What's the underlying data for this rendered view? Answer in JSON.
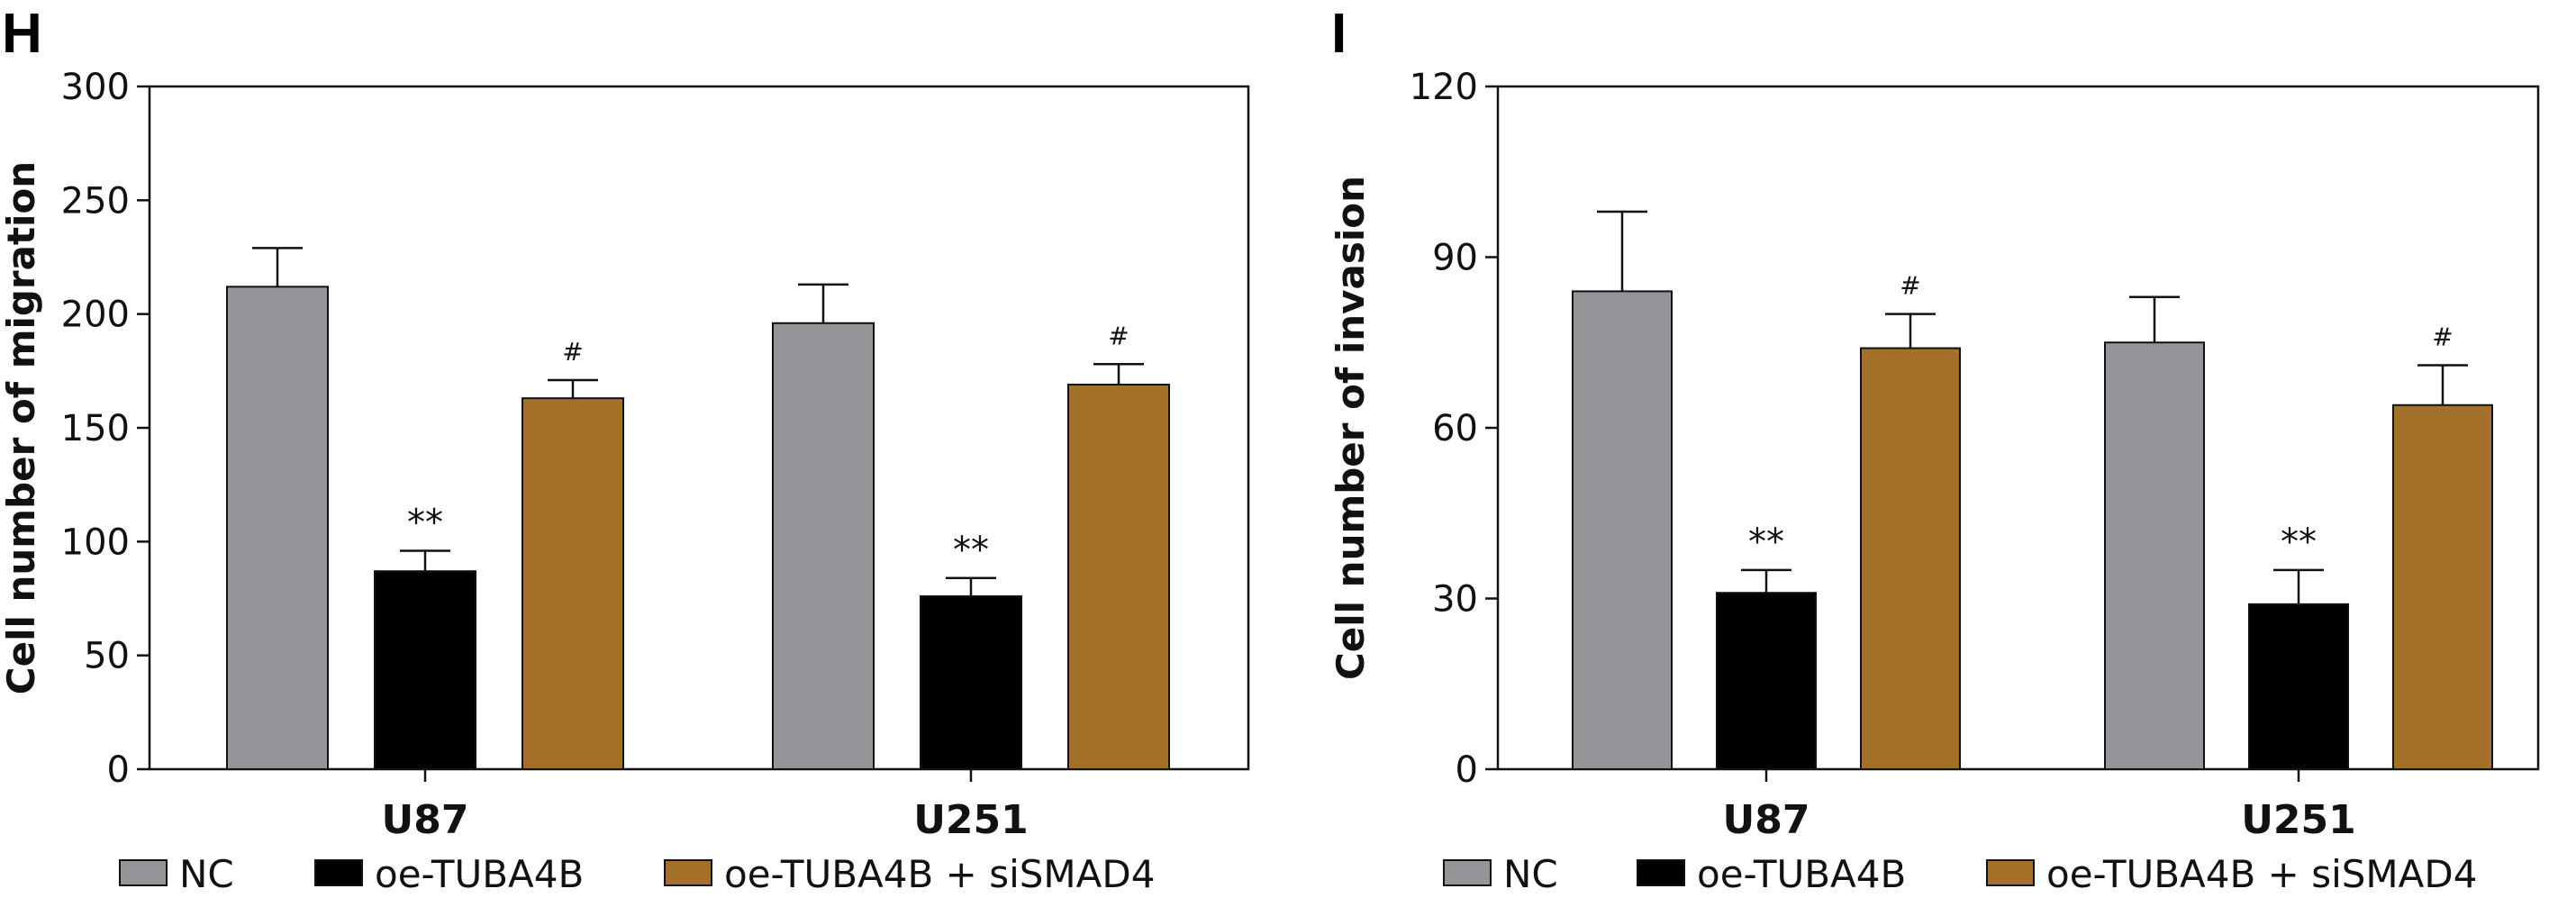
{
  "chart_data": [
    {
      "panel": "H",
      "type": "bar",
      "ylabel": "Cell number of migration",
      "ylim": [
        0,
        300
      ],
      "yticks": [
        0,
        50,
        100,
        150,
        200,
        250,
        300
      ],
      "categories": [
        "U87",
        "U251"
      ],
      "series": [
        {
          "name": "NC",
          "color": "#939598",
          "values": [
            212,
            196
          ],
          "errors": [
            17,
            17
          ],
          "annotations": [
            "",
            ""
          ]
        },
        {
          "name": "oe-TUBA4B",
          "color": "#000000",
          "values": [
            87,
            76
          ],
          "errors": [
            9,
            8
          ],
          "annotations": [
            "**",
            "**"
          ]
        },
        {
          "name": "oe-TUBA4B + siSMAD4",
          "color": "#A27029",
          "values": [
            163,
            169
          ],
          "errors": [
            8,
            9
          ],
          "annotations": [
            "#",
            "#"
          ]
        }
      ]
    },
    {
      "panel": "I",
      "type": "bar",
      "ylabel": "Cell number of invasion",
      "ylim": [
        0,
        120
      ],
      "yticks": [
        0,
        30,
        60,
        90,
        120
      ],
      "categories": [
        "U87",
        "U251"
      ],
      "series": [
        {
          "name": "NC",
          "color": "#939598",
          "values": [
            84,
            75
          ],
          "errors": [
            14,
            8
          ],
          "annotations": [
            "",
            ""
          ]
        },
        {
          "name": "oe-TUBA4B",
          "color": "#000000",
          "values": [
            31,
            29
          ],
          "errors": [
            4,
            6
          ],
          "annotations": [
            "**",
            "**"
          ]
        },
        {
          "name": "oe-TUBA4B + siSMAD4",
          "color": "#A27029",
          "values": [
            74,
            64
          ],
          "errors": [
            6,
            7
          ],
          "annotations": [
            "#",
            "#"
          ]
        }
      ]
    }
  ]
}
